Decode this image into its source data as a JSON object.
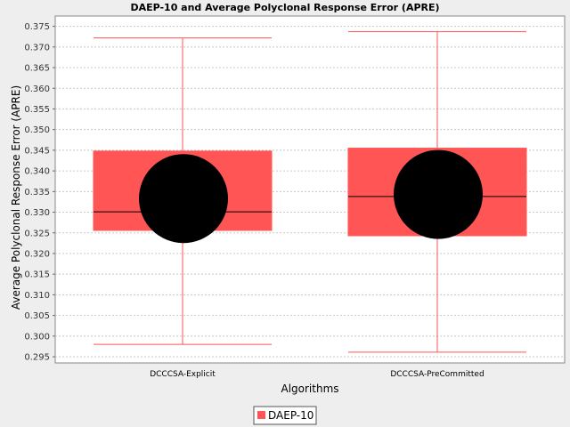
{
  "chart_data": {
    "type": "box",
    "title": "DAEP-10 and Average Polyclonal Response Error (APRE)",
    "xlabel": "Algorithms",
    "ylabel": "Average Polyclonal Response Error (APRE)",
    "ylim": [
      0.2935,
      0.3775
    ],
    "yticks": [
      0.295,
      0.3,
      0.305,
      0.31,
      0.315,
      0.32,
      0.325,
      0.33,
      0.335,
      0.34,
      0.345,
      0.35,
      0.355,
      0.36,
      0.365,
      0.37,
      0.375
    ],
    "grid": true,
    "legend": {
      "position": "bottom",
      "entries": [
        "DAEP-10"
      ]
    },
    "series": [
      {
        "name": "DAEP-10",
        "color": "#ff5555",
        "boxes": [
          {
            "category": "DCCCSA-Explicit",
            "whisker_low": 0.298,
            "q1": 0.3256,
            "median": 0.3301,
            "q3": 0.3448,
            "whisker_high": 0.3722,
            "mean": 0.3333
          },
          {
            "category": "DCCCSA-PreCommitted",
            "whisker_low": 0.2961,
            "q1": 0.3243,
            "median": 0.3338,
            "q3": 0.3455,
            "whisker_high": 0.3737,
            "mean": 0.3343
          }
        ]
      }
    ]
  }
}
